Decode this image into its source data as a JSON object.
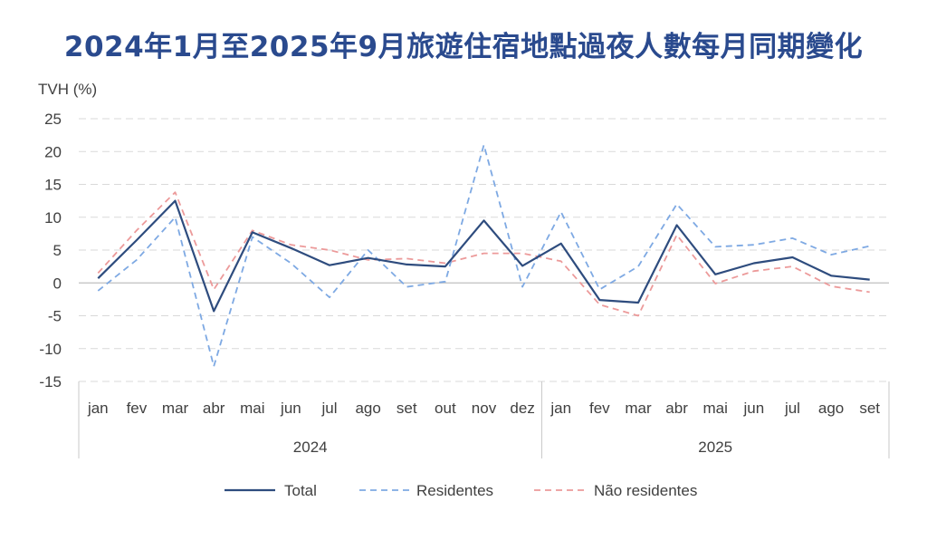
{
  "title": "2024年1月至2025年9月旅遊住宿地點過夜人數每月同期變化",
  "colors": {
    "title": "#2a4a8e",
    "total": "#2e4c7e",
    "residentes": "#7ea9e3",
    "nao_residentes": "#ec9a9a",
    "grid": "#d9d9d9",
    "axis_text": "#404040"
  },
  "chart_data": {
    "type": "line",
    "ylabel": "TVH (%)",
    "ylim": [
      -15,
      25
    ],
    "yticks": [
      25,
      20,
      15,
      10,
      5,
      0,
      -5,
      -10,
      -15
    ],
    "grid": true,
    "legend_position": "bottom",
    "categories": [
      "jan",
      "fev",
      "mar",
      "abr",
      "mai",
      "jun",
      "jul",
      "ago",
      "set",
      "out",
      "nov",
      "dez",
      "jan",
      "fev",
      "mar",
      "abr",
      "mai",
      "jun",
      "jul",
      "ago",
      "set"
    ],
    "year_groups": [
      {
        "label": "2024",
        "start": 0,
        "end": 11
      },
      {
        "label": "2025",
        "start": 12,
        "end": 20
      }
    ],
    "series": [
      {
        "name": "Total",
        "style": "solid",
        "values": [
          0.7,
          6.5,
          12.5,
          -4.3,
          7.7,
          5.3,
          2.7,
          3.8,
          2.8,
          2.5,
          9.5,
          2.6,
          6.0,
          -2.6,
          -3.0,
          8.8,
          1.3,
          3.0,
          3.9,
          1.1,
          0.5
        ]
      },
      {
        "name": "Residentes",
        "style": "dashed",
        "values": [
          -1.2,
          3.5,
          10.0,
          -12.7,
          7.0,
          3.0,
          -2.2,
          5.0,
          -0.6,
          0.2,
          21.0,
          -0.6,
          10.8,
          -1.0,
          2.5,
          12.0,
          5.5,
          5.8,
          6.8,
          4.3,
          5.6
        ]
      },
      {
        "name": "Não residentes",
        "style": "dashed",
        "values": [
          1.5,
          8.0,
          13.8,
          -1.0,
          8.0,
          5.8,
          5.0,
          3.5,
          3.7,
          3.0,
          4.5,
          4.5,
          3.3,
          -3.3,
          -5.0,
          7.3,
          -0.1,
          1.8,
          2.5,
          -0.5,
          -1.4
        ]
      }
    ]
  }
}
